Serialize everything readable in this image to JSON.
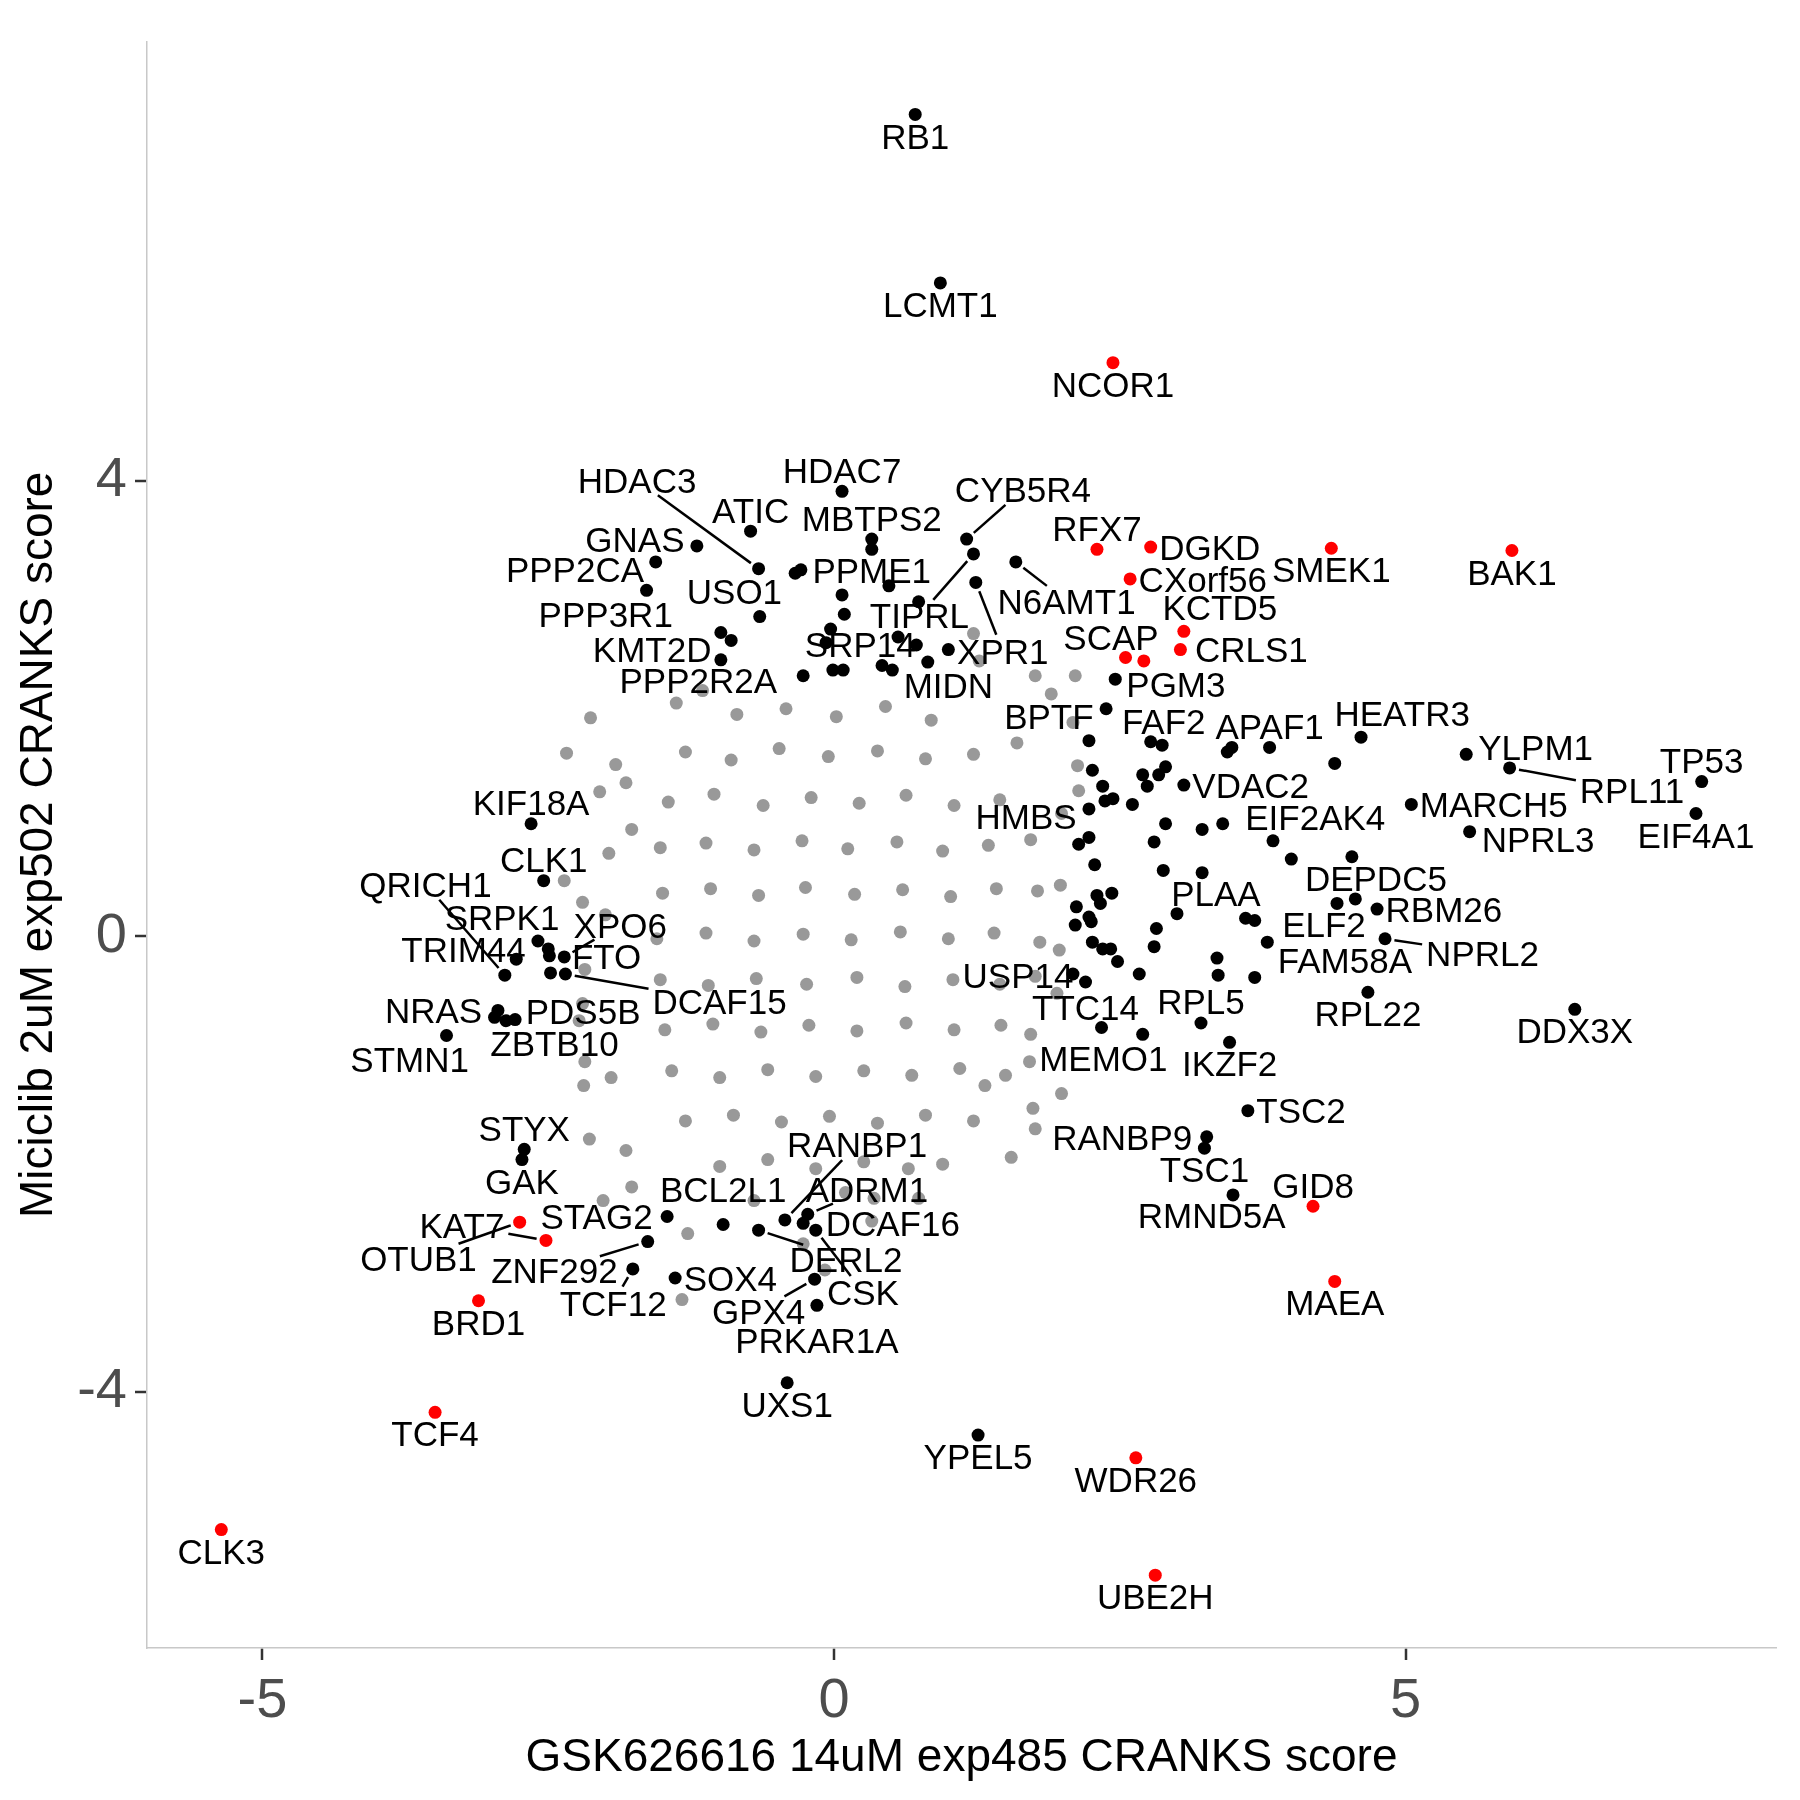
{
  "chart_data": {
    "type": "scatter",
    "xlabel": "GSK626616 14uM exp485 CRANKS score",
    "ylabel": "Miciclib 2uM exp502 CRANKS score",
    "xlim": [
      -6.01,
      8.24
    ],
    "ylim": [
      -6.25,
      7.86
    ],
    "xticks": [
      -5,
      0,
      5
    ],
    "yticks": [
      -4,
      0,
      4
    ],
    "marker": "circle",
    "series": [
      {
        "color": "#999999",
        "x": [
          -2.13,
          -2.34,
          -2.05,
          -1.91,
          -1.38,
          -1.15,
          -2.36,
          -2.2,
          -2.0,
          -2.18,
          -2.23,
          -2.18,
          -2.14,
          -1.82,
          -1.77,
          -1.82,
          -1.95,
          1.27,
          1.76,
          1.9,
          2.11,
          1.22,
          2.13,
          1.99,
          1.71,
          1.99,
          1.76,
          1.55,
          1.22,
          1.95,
          -1.28,
          -1.33,
          -0.08,
          -2.02,
          -1.77,
          0.65,
          0.1,
          -1.97,
          -2.2,
          -2.19,
          1.74,
          1.32,
          2.09,
          2.14,
          -0.27,
          0.33,
          0.74,
          1.98,
          1.97,
          -0.85,
          -0.42,
          0.02,
          0.45,
          0.85,
          -1.3,
          -0.9,
          -0.48,
          -0.05,
          0.38,
          0.8,
          1.22,
          1.6,
          -1.45,
          -1.05,
          -0.62,
          -0.2,
          0.22,
          0.63,
          1.05,
          1.45,
          -1.52,
          -1.12,
          -0.7,
          -0.28,
          0.12,
          0.55,
          0.95,
          1.35,
          1.72,
          -1.5,
          -1.08,
          -0.66,
          -0.25,
          0.18,
          0.6,
          1.02,
          1.42,
          1.78,
          -1.55,
          -1.12,
          -0.7,
          -0.27,
          0.15,
          0.58,
          1.0,
          1.4,
          1.8,
          -1.52,
          -1.1,
          -0.68,
          -0.24,
          0.2,
          0.62,
          1.04,
          1.45,
          1.76,
          -1.48,
          -1.06,
          -0.64,
          -0.22,
          0.2,
          0.63,
          1.05,
          1.46,
          1.72,
          -1.42,
          -1.0,
          -0.58,
          -0.16,
          0.26,
          0.68,
          1.1,
          1.5,
          -1.3,
          -0.88,
          -0.46,
          -0.04,
          0.38,
          0.8,
          -1.0,
          -0.58,
          -0.16,
          0.26,
          0.95,
          -0.7,
          0.35
        ],
        "values": [
          1.92,
          1.61,
          1.27,
          1.51,
          2.05,
          2.16,
          0.49,
          0.3,
          0.19,
          -0.29,
          -0.74,
          -1.1,
          -1.78,
          -1.88,
          0.94,
          1.35,
          -1.24,
          2.42,
          2.29,
          2.13,
          2.29,
          2.66,
          1.5,
          1.08,
          -1.1,
          -1.38,
          -1.69,
          -1.94,
          -1.62,
          -0.5,
          -2.61,
          -3.19,
          -2.93,
          -2.32,
          -2.2,
          -2.04,
          -2.25,
          0.73,
          -0.59,
          -1.31,
          -1.51,
          -1.31,
          1.88,
          1.28,
          -2.7,
          -2.5,
          -2.3,
          0.45,
          -0.12,
          1.95,
          2.0,
          1.93,
          2.02,
          1.9,
          1.62,
          1.55,
          1.65,
          1.58,
          1.63,
          1.56,
          1.6,
          1.7,
          1.18,
          1.25,
          1.15,
          1.22,
          1.17,
          1.24,
          1.15,
          1.2,
          0.78,
          0.82,
          0.76,
          0.84,
          0.77,
          0.83,
          0.75,
          0.8,
          0.85,
          0.38,
          0.42,
          0.36,
          0.43,
          0.37,
          0.41,
          0.35,
          0.42,
          0.4,
          -0.02,
          0.03,
          -0.04,
          0.02,
          -0.03,
          0.04,
          -0.02,
          0.03,
          -0.05,
          -0.38,
          -0.43,
          -0.37,
          -0.42,
          -0.36,
          -0.44,
          -0.38,
          -0.42,
          -0.35,
          -0.82,
          -0.77,
          -0.84,
          -0.78,
          -0.83,
          -0.76,
          -0.82,
          -0.78,
          -0.86,
          -1.18,
          -1.24,
          -1.17,
          -1.23,
          -1.18,
          -1.22,
          -1.16,
          -1.22,
          -1.62,
          -1.57,
          -1.63,
          -1.58,
          -1.64,
          -1.57,
          -2.02,
          -1.96,
          -2.04,
          -1.98,
          -2.0,
          -2.32,
          -2.3
        ]
      },
      {
        "color": "#000000",
        "x": [
          0.71,
          0.93,
          0.07,
          -0.73,
          -1.2,
          -1.56,
          0.33,
          0.33,
          -0.66,
          -0.34,
          -0.29,
          -1.64,
          0.07,
          0.48,
          0.74,
          -0.65,
          0.09,
          1.16,
          1.22,
          1.59,
          1.24,
          -0.99,
          -0.9,
          -0.99,
          -0.03,
          -0.07,
          -0.27,
          -0.01,
          0.08,
          0.56,
          0.72,
          0.82,
          1.0,
          0.42,
          0.51,
          2.46,
          2.38,
          2.23,
          2.77,
          2.87,
          3.44,
          3.48,
          3.81,
          4.61,
          4.38,
          5.53,
          5.91,
          7.59,
          7.54,
          5.56,
          5.05,
          2.9,
          2.84,
          2.7,
          2.74,
          3.06,
          2.26,
          2.35,
          2.37,
          2.44,
          2.61,
          2.23,
          2.23,
          2.14,
          2.9,
          2.8,
          3.22,
          3.4,
          3.84,
          4.0,
          4.53,
          2.28,
          2.88,
          3.22,
          2.3,
          2.43,
          2.33,
          2.12,
          2.23,
          2.11,
          2.25,
          3.0,
          2.82,
          2.8,
          3.6,
          3.68,
          3.79,
          4.4,
          4.56,
          4.75,
          4.82,
          2.26,
          2.35,
          2.42,
          2.48,
          2.09,
          2.2,
          2.67,
          3.35,
          3.36,
          3.68,
          4.67,
          6.48,
          2.34,
          2.7,
          3.21,
          3.46,
          3.62,
          3.26,
          3.24,
          3.49,
          1.26,
          -2.65,
          -2.54,
          -2.59,
          -2.5,
          -2.49,
          -2.36,
          -2.78,
          -2.88,
          -2.48,
          -2.35,
          -2.94,
          -2.97,
          -2.87,
          -2.79,
          -3.39,
          -2.71,
          -2.73,
          -1.46,
          -1.63,
          -1.76,
          -1.39,
          -0.97,
          -0.66,
          -0.43,
          -0.23,
          -0.27,
          -0.16,
          -0.17,
          -0.15,
          -0.41
        ],
        "values": [
          7.22,
          5.74,
          3.91,
          3.56,
          3.43,
          3.29,
          3.49,
          3.4,
          3.23,
          3.19,
          3.22,
          3.04,
          3.0,
          3.08,
          2.94,
          2.81,
          2.83,
          3.49,
          3.36,
          3.29,
          3.11,
          2.67,
          2.6,
          2.43,
          2.7,
          2.58,
          2.29,
          2.34,
          2.34,
          2.63,
          2.56,
          2.41,
          2.52,
          2.38,
          2.34,
          2.26,
          2.0,
          1.72,
          1.71,
          1.68,
          1.62,
          1.66,
          1.66,
          1.75,
          1.52,
          1.6,
          1.48,
          1.36,
          1.08,
          0.92,
          1.16,
          1.49,
          1.42,
          1.42,
          1.32,
          1.33,
          1.46,
          1.32,
          1.19,
          1.21,
          1.16,
          1.12,
          0.87,
          0.81,
          0.99,
          0.83,
          0.94,
          0.99,
          0.84,
          0.68,
          0.7,
          0.63,
          0.58,
          0.56,
          0.36,
          0.38,
          0.29,
          0.26,
          0.17,
          0.1,
          0.13,
          0.2,
          0.07,
          -0.09,
          0.16,
          0.14,
          -0.05,
          0.29,
          0.33,
          0.24,
          -0.02,
          -0.05,
          -0.11,
          -0.11,
          -0.22,
          -0.33,
          -0.4,
          -0.33,
          -0.19,
          -0.34,
          -0.36,
          -0.49,
          -0.64,
          -0.8,
          -0.86,
          -0.76,
          -0.93,
          -1.53,
          -1.76,
          -1.86,
          -2.27,
          -4.38,
          0.99,
          0.49,
          -0.04,
          -0.11,
          -0.17,
          -0.18,
          -0.2,
          -0.34,
          -0.32,
          -0.33,
          -0.65,
          -0.71,
          -0.74,
          -0.73,
          -0.87,
          -1.87,
          -1.96,
          -2.46,
          -2.68,
          -2.92,
          -3.0,
          -2.53,
          -2.58,
          -2.49,
          -2.44,
          -2.52,
          -2.58,
          -3.01,
          -3.24,
          -3.92
        ]
      },
      {
        "color": "#ff0000",
        "x": [
          2.44,
          2.3,
          2.59,
          2.77,
          4.35,
          5.93,
          3.06,
          3.03,
          2.55,
          2.71,
          4.19,
          4.38,
          2.64,
          2.81,
          -2.75,
          -2.52,
          -3.11,
          -3.49,
          -5.36
        ],
        "values": [
          5.04,
          3.4,
          3.14,
          3.42,
          3.41,
          3.39,
          2.68,
          2.52,
          2.45,
          2.42,
          -2.37,
          -3.03,
          -4.58,
          -5.61,
          -2.51,
          -2.67,
          -3.2,
          -4.18,
          -5.21
        ]
      }
    ],
    "annotations": [
      {
        "text": "RB1",
        "x": 0.71,
        "y": 7.22
      },
      {
        "text": "LCMT1",
        "x": 0.93,
        "y": 5.74
      },
      {
        "text": "NCOR1",
        "x": 2.44,
        "y": 5.04
      },
      {
        "text": "HDAC7",
        "x": 0.07,
        "y": 3.91
      },
      {
        "text": "CYB5R4",
        "x": 1.16,
        "y": 3.49
      },
      {
        "text": "RFX7",
        "x": 2.3,
        "y": 3.4
      },
      {
        "text": "DGKD",
        "x": 2.77,
        "y": 3.42
      },
      {
        "text": "ATIC",
        "x": -0.73,
        "y": 3.56
      },
      {
        "text": "MBTPS2",
        "x": 0.33,
        "y": 3.49
      },
      {
        "text": "TIPRL",
        "x": 1.22,
        "y": 3.36
      },
      {
        "text": "GNAS",
        "x": -1.2,
        "y": 3.43
      },
      {
        "text": "PPME1",
        "x": 0.33,
        "y": 3.4
      },
      {
        "text": "CXorf56",
        "x": 2.59,
        "y": 3.14
      },
      {
        "text": "SMEK1",
        "x": 4.35,
        "y": 3.41
      },
      {
        "text": "BAK1",
        "x": 5.93,
        "y": 3.39
      },
      {
        "text": "PPP2CA",
        "x": -1.56,
        "y": 3.29
      },
      {
        "text": "N6AMT1",
        "x": 1.59,
        "y": 3.29
      },
      {
        "text": "USO1",
        "x": -0.34,
        "y": 3.19
      },
      {
        "text": "HDAC3",
        "x": -0.66,
        "y": 3.23
      },
      {
        "text": "PPP3R1",
        "x": -1.64,
        "y": 3.04
      },
      {
        "text": "KCTD5",
        "x": 3.06,
        "y": 2.68
      },
      {
        "text": "XPR1",
        "x": 1.24,
        "y": 3.11
      },
      {
        "text": "SCAP",
        "x": 2.55,
        "y": 2.45
      },
      {
        "text": "CRLS1",
        "x": 3.03,
        "y": 2.52
      },
      {
        "text": "PGM3",
        "x": 2.71,
        "y": 2.42
      },
      {
        "text": "KMT2D",
        "x": -0.9,
        "y": 2.6
      },
      {
        "text": "MIDN",
        "x": 1.0,
        "y": 2.52
      },
      {
        "text": "HEATR3",
        "x": 4.61,
        "y": 1.75
      },
      {
        "text": "YLPM1",
        "x": 5.53,
        "y": 1.6
      },
      {
        "text": "APAF1",
        "x": 3.81,
        "y": 1.66
      },
      {
        "text": "FAF2",
        "x": 2.77,
        "y": 1.71
      },
      {
        "text": "PPP2R2A",
        "x": -0.99,
        "y": 2.43
      },
      {
        "text": "SRP14",
        "x": 0.82,
        "y": 2.41
      },
      {
        "text": "BPTF",
        "x": 2.38,
        "y": 2.0
      },
      {
        "text": "TP53",
        "x": 7.59,
        "y": 1.36
      },
      {
        "text": "RPL11",
        "x": 5.91,
        "y": 1.48
      },
      {
        "text": "MARCH5",
        "x": 5.05,
        "y": 1.16
      },
      {
        "text": "VDAC2",
        "x": 3.06,
        "y": 1.33
      },
      {
        "text": "HMBS",
        "x": 2.23,
        "y": 1.12
      },
      {
        "text": "NPRL3",
        "x": 5.56,
        "y": 0.92
      },
      {
        "text": "EIF2AK4",
        "x": 3.84,
        "y": 0.84
      },
      {
        "text": "KIF18A",
        "x": -2.65,
        "y": 0.99
      },
      {
        "text": "CLK1",
        "x": -2.54,
        "y": 0.49
      },
      {
        "text": "SRPK1",
        "x": -2.59,
        "y": -0.04
      },
      {
        "text": "EIF4A1",
        "x": 7.54,
        "y": 1.08
      },
      {
        "text": "DEPDC5",
        "x": 4.56,
        "y": 0.33
      },
      {
        "text": "TRIM44",
        "x": -2.5,
        "y": -0.11
      },
      {
        "text": "PLAA",
        "x": 3.22,
        "y": 0.56
      },
      {
        "text": "ELF2",
        "x": 4.4,
        "y": 0.29
      },
      {
        "text": "FTO",
        "x": -2.49,
        "y": -0.17
      },
      {
        "text": "RBM26",
        "x": 4.75,
        "y": 0.24
      },
      {
        "text": "DCAF15",
        "x": -2.35,
        "y": -0.33
      },
      {
        "text": "XPO6",
        "x": -2.36,
        "y": -0.18
      },
      {
        "text": "FAM58A",
        "x": 3.79,
        "y": -0.05
      },
      {
        "text": "QRICH1",
        "x": -2.88,
        "y": -0.34
      },
      {
        "text": "NPRL2",
        "x": 4.82,
        "y": -0.02
      },
      {
        "text": "ZBTB10",
        "x": -2.79,
        "y": -0.73
      },
      {
        "text": "MEMO1",
        "x": 2.7,
        "y": -0.86
      },
      {
        "text": "NRAS",
        "x": -2.97,
        "y": -0.71
      },
      {
        "text": "USP14",
        "x": 2.2,
        "y": -0.4
      },
      {
        "text": "RPL5",
        "x": 3.21,
        "y": -0.76
      },
      {
        "text": "RPL22",
        "x": 4.67,
        "y": -0.49
      },
      {
        "text": "DDX3X",
        "x": 6.48,
        "y": -0.64
      },
      {
        "text": "PDS5B",
        "x": -2.87,
        "y": -0.74
      },
      {
        "text": "STMN1",
        "x": -3.39,
        "y": -0.87
      },
      {
        "text": "TTC14",
        "x": 2.34,
        "y": -0.8
      },
      {
        "text": "IKZF2",
        "x": 3.46,
        "y": -0.93
      },
      {
        "text": "RANBP1",
        "x": -0.43,
        "y": -2.49
      },
      {
        "text": "TSC2",
        "x": 3.62,
        "y": -1.53
      },
      {
        "text": "STYX",
        "x": -2.71,
        "y": -1.87
      },
      {
        "text": "BCL2L1",
        "x": -0.97,
        "y": -2.53
      },
      {
        "text": "DCAF16",
        "x": -0.27,
        "y": -2.52
      },
      {
        "text": "RANBP9",
        "x": 3.26,
        "y": -1.76
      },
      {
        "text": "TSC1",
        "x": 3.24,
        "y": -1.86
      },
      {
        "text": "GAK",
        "x": -2.73,
        "y": -1.96
      },
      {
        "text": "STAG2",
        "x": -1.46,
        "y": -2.46
      },
      {
        "text": "DERL2",
        "x": -0.66,
        "y": -2.58
      },
      {
        "text": "ADRM1",
        "x": -0.23,
        "y": -2.44
      },
      {
        "text": "RMND5A",
        "x": 3.49,
        "y": -2.27
      },
      {
        "text": "GID8",
        "x": 4.19,
        "y": -2.37
      },
      {
        "text": "OTUB1",
        "x": -2.75,
        "y": -2.51
      },
      {
        "text": "ZNF292",
        "x": -1.63,
        "y": -2.68
      },
      {
        "text": "KAT7",
        "x": -2.52,
        "y": -2.67
      },
      {
        "text": "CSK",
        "x": -0.16,
        "y": -2.58
      },
      {
        "text": "GPX4",
        "x": -0.17,
        "y": -3.01
      },
      {
        "text": "MAEA",
        "x": 4.38,
        "y": -3.03
      },
      {
        "text": "BRD1",
        "x": -3.11,
        "y": -3.2
      },
      {
        "text": "TCF12",
        "x": -1.76,
        "y": -2.92
      },
      {
        "text": "SOX4",
        "x": -1.39,
        "y": -3.0
      },
      {
        "text": "PRKAR1A",
        "x": -0.15,
        "y": -3.24
      },
      {
        "text": "TCF4",
        "x": -3.49,
        "y": -4.18
      },
      {
        "text": "UXS1",
        "x": -0.41,
        "y": -3.92
      },
      {
        "text": "YPEL5",
        "x": 1.26,
        "y": -4.38
      },
      {
        "text": "WDR26",
        "x": 2.64,
        "y": -4.58
      },
      {
        "text": "CLK3",
        "x": -5.36,
        "y": -5.21
      },
      {
        "text": "UBE2H",
        "x": 2.81,
        "y": -5.61
      }
    ]
  }
}
